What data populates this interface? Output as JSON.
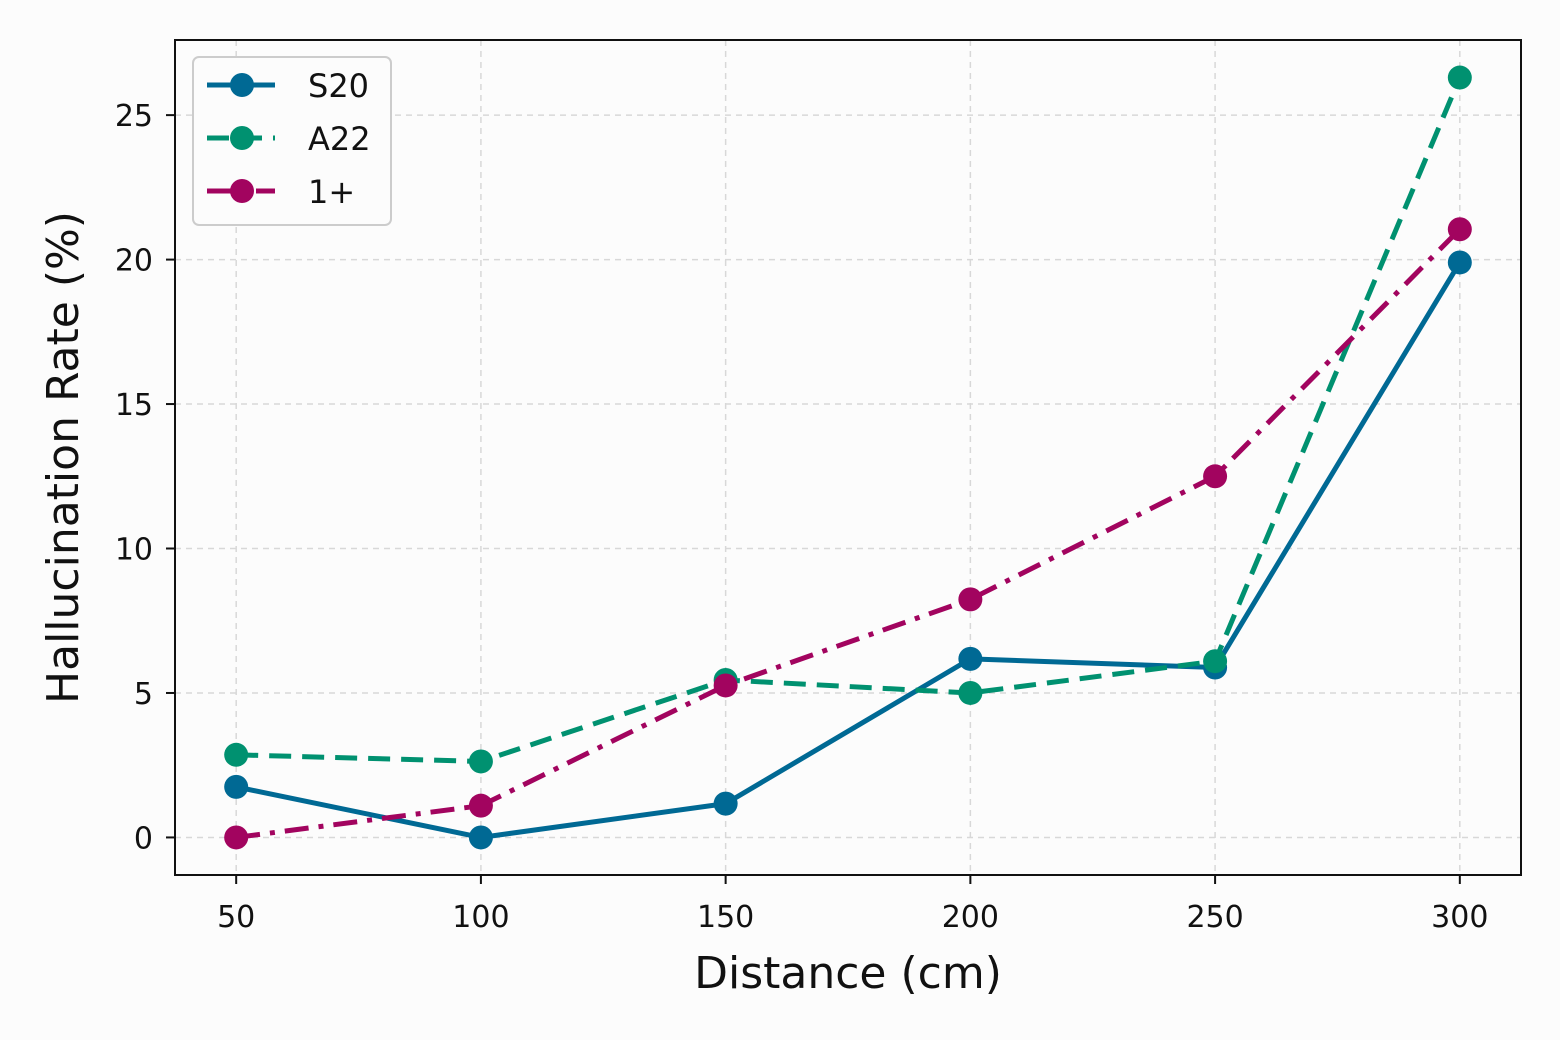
{
  "chart_data": {
    "type": "line",
    "xlabel": "Distance (cm)",
    "ylabel": "Hallucination Rate (%)",
    "x": [
      50,
      100,
      150,
      200,
      250,
      300
    ],
    "xticks": [
      50,
      100,
      150,
      200,
      250,
      300
    ],
    "yticks": [
      0,
      5,
      10,
      15,
      20,
      25
    ],
    "xlim": [
      37.5,
      312.5
    ],
    "ylim": [
      -1.3,
      27.6
    ],
    "grid": true,
    "legend_position": "top-left",
    "series": [
      {
        "name": "S20",
        "color": "#006994",
        "linestyle": "solid",
        "values": [
          1.75,
          0.0,
          1.17,
          6.18,
          5.88,
          19.9
        ]
      },
      {
        "name": "A22",
        "color": "#009170",
        "linestyle": "dashed",
        "values": [
          2.86,
          2.63,
          5.45,
          5.0,
          6.1,
          26.3
        ]
      },
      {
        "name": "1+",
        "color": "#a2045f",
        "linestyle": "dashdot",
        "values": [
          0.0,
          1.1,
          5.26,
          8.24,
          12.5,
          21.05
        ]
      }
    ]
  }
}
